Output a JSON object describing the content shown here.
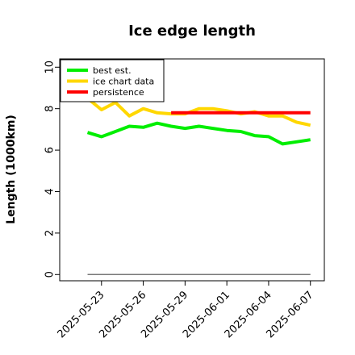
{
  "chart_data": {
    "type": "line",
    "title": "Ice edge length",
    "xlabel": "",
    "ylabel": "Length (1000km)",
    "ylim": [
      -0.3,
      10.4
    ],
    "yticks": [
      0,
      2,
      4,
      6,
      8,
      10
    ],
    "xlim": [
      "2025-05-20",
      "2025-06-08"
    ],
    "xticks": [
      "2025-05-23",
      "2025-05-26",
      "2025-05-29",
      "2025-06-01",
      "2025-06-04",
      "2025-06-07"
    ],
    "grid": false,
    "legend_position": "top-left",
    "series": [
      {
        "name": "best est.",
        "color": "#00ee00",
        "x": [
          "2025-05-22",
          "2025-05-23",
          "2025-05-24",
          "2025-05-25",
          "2025-05-26",
          "2025-05-27",
          "2025-05-28",
          "2025-05-29",
          "2025-05-30",
          "2025-05-31",
          "2025-06-01",
          "2025-06-02",
          "2025-06-03",
          "2025-06-04",
          "2025-06-05",
          "2025-06-06",
          "2025-06-07"
        ],
        "values": [
          6.85,
          6.65,
          6.9,
          7.15,
          7.1,
          7.3,
          7.15,
          7.05,
          7.15,
          7.05,
          6.95,
          6.9,
          6.7,
          6.65,
          6.3,
          6.4,
          6.5
        ]
      },
      {
        "name": "ice chart data",
        "color": "#ffd700",
        "x": [
          "2025-05-22",
          "2025-05-23",
          "2025-05-24",
          "2025-05-25",
          "2025-05-26",
          "2025-05-27",
          "2025-05-28",
          "2025-05-29",
          "2025-05-30",
          "2025-05-31",
          "2025-06-01",
          "2025-06-02",
          "2025-06-03",
          "2025-06-04",
          "2025-06-05",
          "2025-06-06",
          "2025-06-07"
        ],
        "values": [
          8.5,
          7.95,
          8.3,
          7.65,
          8.0,
          7.8,
          7.75,
          7.75,
          8.0,
          8.0,
          7.9,
          7.75,
          7.85,
          7.65,
          7.65,
          7.35,
          7.2
        ]
      },
      {
        "name": "persistence",
        "color": "#ff0000",
        "x": [
          "2025-05-28",
          "2025-06-07"
        ],
        "values": [
          7.8,
          7.8
        ]
      }
    ],
    "baseline": {
      "color": "#777777",
      "x": [
        "2025-05-22",
        "2025-06-07"
      ],
      "values": [
        0,
        0
      ]
    }
  }
}
